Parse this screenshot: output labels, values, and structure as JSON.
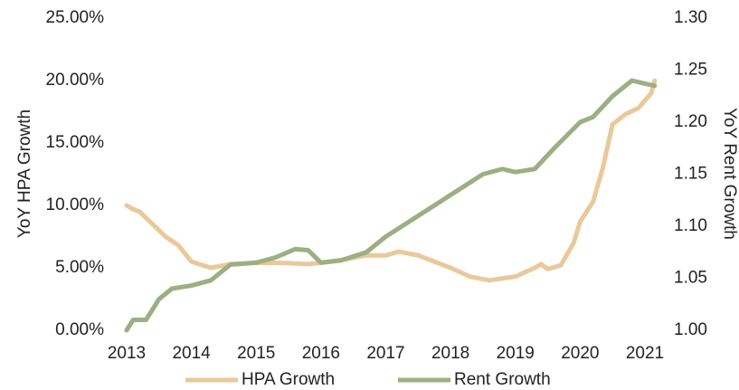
{
  "chart_data": {
    "type": "line",
    "y_label": "YoY HPA Growth",
    "y2_label": "YoY Rent Growth",
    "xlim": [
      2013,
      2021
    ],
    "xticks": [
      2013,
      2014,
      2015,
      2016,
      2017,
      2018,
      2019,
      2020,
      2021
    ],
    "ylim": [
      0,
      25
    ],
    "yticks": [
      {
        "value": 0,
        "label": "0.00%"
      },
      {
        "value": 5,
        "label": "5.00%"
      },
      {
        "value": 10,
        "label": "10.00%"
      },
      {
        "value": 15,
        "label": "15.00%"
      },
      {
        "value": 20,
        "label": "20.00%"
      },
      {
        "value": 25,
        "label": "25.00%"
      }
    ],
    "y2lim": [
      1.0,
      1.3
    ],
    "y2ticks": [
      {
        "value": 1.0,
        "label": "1.00"
      },
      {
        "value": 1.05,
        "label": "1.05"
      },
      {
        "value": 1.1,
        "label": "1.10"
      },
      {
        "value": 1.15,
        "label": "1.15"
      },
      {
        "value": 1.2,
        "label": "1.20"
      },
      {
        "value": 1.25,
        "label": "1.25"
      },
      {
        "value": 1.3,
        "label": "1.30"
      }
    ],
    "legend": "bottom",
    "series": [
      {
        "name": "HPA Growth",
        "color": "#e9c99b",
        "x": [
          2013.0,
          2013.1,
          2013.2,
          2013.4,
          2013.6,
          2013.8,
          2014.0,
          2014.3,
          2014.6,
          2015.0,
          2015.4,
          2015.8,
          2016.0,
          2016.4,
          2016.7,
          2017.0,
          2017.2,
          2017.5,
          2018.0,
          2018.3,
          2018.6,
          2019.0,
          2019.3,
          2019.4,
          2019.5,
          2019.7,
          2019.9,
          2020.0,
          2020.2,
          2020.35,
          2020.5,
          2020.7,
          2020.9,
          2021.1,
          2021.15
        ],
        "values": [
          10.0,
          9.7,
          9.5,
          8.5,
          7.5,
          6.8,
          5.5,
          5.0,
          5.3,
          5.4,
          5.4,
          5.3,
          5.4,
          5.7,
          6.0,
          6.0,
          6.3,
          6.0,
          5.0,
          4.3,
          4.0,
          4.3,
          5.0,
          5.3,
          4.9,
          5.2,
          7.0,
          8.7,
          10.3,
          13.0,
          16.5,
          17.3,
          17.8,
          19.0,
          20.0
        ]
      },
      {
        "name": "Rent Growth",
        "color": "#9caf82",
        "axis": "y2",
        "x": [
          2013.0,
          2013.1,
          2013.3,
          2013.5,
          2013.7,
          2014.0,
          2014.3,
          2014.6,
          2015.0,
          2015.3,
          2015.6,
          2015.8,
          2016.0,
          2016.3,
          2016.7,
          2017.0,
          2017.5,
          2018.0,
          2018.5,
          2018.8,
          2019.0,
          2019.3,
          2019.6,
          2020.0,
          2020.2,
          2020.5,
          2020.8,
          2021.0,
          2021.15
        ],
        "values": [
          1.0,
          1.01,
          1.01,
          1.03,
          1.04,
          1.043,
          1.048,
          1.063,
          1.065,
          1.07,
          1.078,
          1.077,
          1.065,
          1.067,
          1.075,
          1.09,
          1.11,
          1.13,
          1.15,
          1.155,
          1.152,
          1.155,
          1.175,
          1.2,
          1.205,
          1.225,
          1.24,
          1.237,
          1.235
        ]
      }
    ]
  }
}
